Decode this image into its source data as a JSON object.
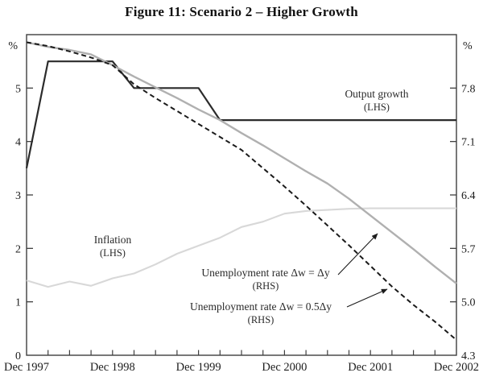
{
  "title": "Figure 11: Scenario 2 – Higher Growth",
  "left_axis": {
    "unit": "%",
    "ticks": [
      {
        "value": 5,
        "label": "5"
      },
      {
        "value": 4,
        "label": "4"
      },
      {
        "value": 3,
        "label": "3"
      },
      {
        "value": 2,
        "label": "2"
      },
      {
        "value": 1,
        "label": "1"
      },
      {
        "value": 0,
        "label": "0",
        "edge": true
      }
    ]
  },
  "right_axis": {
    "unit": "%",
    "ticks": [
      {
        "value": 7.8,
        "label": "7.8"
      },
      {
        "value": 7.1,
        "label": "7.1"
      },
      {
        "value": 6.4,
        "label": "6.4"
      },
      {
        "value": 5.7,
        "label": "5.7"
      },
      {
        "value": 5.0,
        "label": "5.0"
      },
      {
        "value": 4.3,
        "label": "4.3",
        "edge": true
      }
    ]
  },
  "x_axis": {
    "labels": [
      {
        "index": 0,
        "label": "Dec 1997"
      },
      {
        "index": 4,
        "label": "Dec 1998"
      },
      {
        "index": 8,
        "label": "Dec 1999"
      },
      {
        "index": 12,
        "label": "Dec 2000"
      },
      {
        "index": 16,
        "label": "Dec 2001"
      },
      {
        "index": 20,
        "label": "Dec 2002"
      }
    ]
  },
  "labels": {
    "output": {
      "line1": "Output growth",
      "line2": "(LHS)"
    },
    "inflation": {
      "line1": "Inflation",
      "line2": "(LHS)"
    },
    "unemp_dy": {
      "line1": "Unemployment rate Δw = Δy",
      "line2": "(RHS)"
    },
    "unemp_half_dy": {
      "line1": "Unemployment rate Δw = 0.5Δy",
      "line2": "(RHS)"
    }
  },
  "chart_data": {
    "type": "line",
    "title": "Figure 11: Scenario 2 – Higher Growth",
    "xlabel": "",
    "ylabel_left": "%",
    "ylabel_right": "%",
    "lhs_range": [
      0,
      6
    ],
    "rhs_range": [
      4.3,
      8.5
    ],
    "grid": false,
    "legend_position": "inline-annotations",
    "x": [
      "Dec 1997",
      "Mar 1998",
      "Jun 1998",
      "Sep 1998",
      "Dec 1998",
      "Mar 1999",
      "Jun 1999",
      "Sep 1999",
      "Dec 1999",
      "Mar 2000",
      "Jun 2000",
      "Sep 2000",
      "Dec 2000",
      "Mar 2001",
      "Jun 2001",
      "Sep 2001",
      "Dec 2001",
      "Mar 2002",
      "Jun 2002",
      "Sep 2002",
      "Dec 2002"
    ],
    "x_shown_tick_labels": [
      "Dec 1997",
      "Dec 1998",
      "Dec 1999",
      "Dec 2000",
      "Dec 2001",
      "Dec 2002"
    ],
    "series": [
      {
        "id": "inflation",
        "name": "Inflation (LHS)",
        "axis": "LHS",
        "color": "#d8d8d8",
        "width": 2.1,
        "dash": "",
        "values": [
          1.4,
          1.28,
          1.38,
          1.3,
          1.44,
          1.53,
          1.7,
          1.9,
          2.05,
          2.2,
          2.4,
          2.5,
          2.65,
          2.7,
          2.72,
          2.74,
          2.75,
          2.75,
          2.75,
          2.75,
          2.75
        ]
      },
      {
        "id": "output-growth",
        "name": "Output growth (LHS)",
        "axis": "LHS",
        "color": "#2b2b2b",
        "width": 2.2,
        "dash": "",
        "values": [
          3.5,
          5.5,
          5.5,
          5.5,
          5.5,
          5.0,
          5.0,
          5.0,
          5.0,
          4.4,
          4.4,
          4.4,
          4.4,
          4.4,
          4.4,
          4.4,
          4.4,
          4.4,
          4.4,
          4.4,
          4.4
        ]
      },
      {
        "id": "unemployment-dw-dy",
        "name": "Unemployment rate Δw = Δy (RHS)",
        "axis": "RHS",
        "color": "#b0b0b0",
        "width": 2.4,
        "dash": "",
        "values": [
          8.4,
          8.34,
          8.3,
          8.24,
          8.1,
          7.95,
          7.81,
          7.67,
          7.52,
          7.38,
          7.21,
          7.05,
          6.88,
          6.71,
          6.55,
          6.35,
          6.13,
          5.91,
          5.69,
          5.46,
          5.24
        ]
      },
      {
        "id": "unemployment-dw-half-dy",
        "name": "Unemployment rate Δw = 0.5Δy (RHS)",
        "axis": "RHS",
        "color": "#1a1a1a",
        "width": 2.0,
        "dash": "6 4",
        "values": [
          8.4,
          8.35,
          8.28,
          8.2,
          8.1,
          7.85,
          7.67,
          7.5,
          7.33,
          7.16,
          6.99,
          6.75,
          6.51,
          6.26,
          6.0,
          5.74,
          5.47,
          5.2,
          4.96,
          4.74,
          4.5
        ]
      }
    ]
  }
}
